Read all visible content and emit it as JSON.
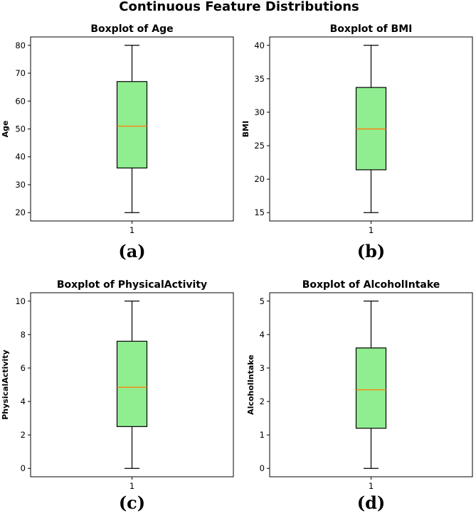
{
  "figure": {
    "suptitle": "Continuous Feature Distributions"
  },
  "colors": {
    "box_fill": "#90ee90",
    "median": "#ff7f0e",
    "edge": "#000000"
  },
  "chart_data": [
    {
      "type": "box",
      "title": "Boxplot of Age",
      "ylabel": "Age",
      "xlabel": "",
      "panel_label": "(a)",
      "categories": [
        "1"
      ],
      "ylim": [
        17,
        83
      ],
      "yticks": [
        20,
        30,
        40,
        50,
        60,
        70,
        80
      ],
      "box": {
        "whisker_low": 20,
        "q1": 36,
        "median": 51,
        "q3": 67,
        "whisker_high": 80
      }
    },
    {
      "type": "box",
      "title": "Boxplot of BMI",
      "ylabel": "BMI",
      "xlabel": "",
      "panel_label": "(b)",
      "categories": [
        "1"
      ],
      "ylim": [
        13.75,
        41.25
      ],
      "yticks": [
        15,
        20,
        25,
        30,
        35,
        40
      ],
      "box": {
        "whisker_low": 15,
        "q1": 21.4,
        "median": 27.5,
        "q3": 33.7,
        "whisker_high": 40
      }
    },
    {
      "type": "box",
      "title": "Boxplot of PhysicalActivity",
      "ylabel": "PhysicalActivity",
      "xlabel": "",
      "panel_label": "(c)",
      "categories": [
        "1"
      ],
      "ylim": [
        -0.5,
        10.5
      ],
      "yticks": [
        0,
        2,
        4,
        6,
        8,
        10
      ],
      "box": {
        "whisker_low": 0,
        "q1": 2.5,
        "median": 4.85,
        "q3": 7.6,
        "whisker_high": 10
      }
    },
    {
      "type": "box",
      "title": "Boxplot of AlcoholIntake",
      "ylabel": "AlcoholIntake",
      "xlabel": "",
      "panel_label": "(d)",
      "categories": [
        "1"
      ],
      "ylim": [
        -0.25,
        5.25
      ],
      "yticks": [
        0,
        1,
        2,
        3,
        4,
        5
      ],
      "box": {
        "whisker_low": 0,
        "q1": 1.2,
        "median": 2.35,
        "q3": 3.6,
        "whisker_high": 5
      }
    }
  ]
}
